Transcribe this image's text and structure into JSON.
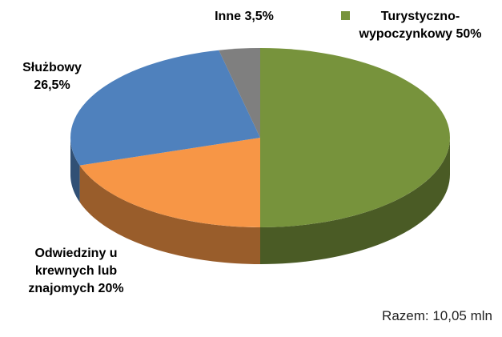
{
  "chart_data": {
    "type": "pie3d",
    "categories": [
      "Turystyczno-wypoczynkowy",
      "Odwiedziny u krewnych lub znajomych",
      "Służbowy",
      "Inne"
    ],
    "values": [
      50,
      20,
      26.5,
      3.5
    ],
    "value_labels": [
      "50%",
      "20%",
      "26,5%",
      "3,5%"
    ],
    "colors": [
      "#77933c",
      "#f79646",
      "#4f81bd",
      "#7f7f7f"
    ],
    "note": "Razem: 10,05 mln"
  }
}
